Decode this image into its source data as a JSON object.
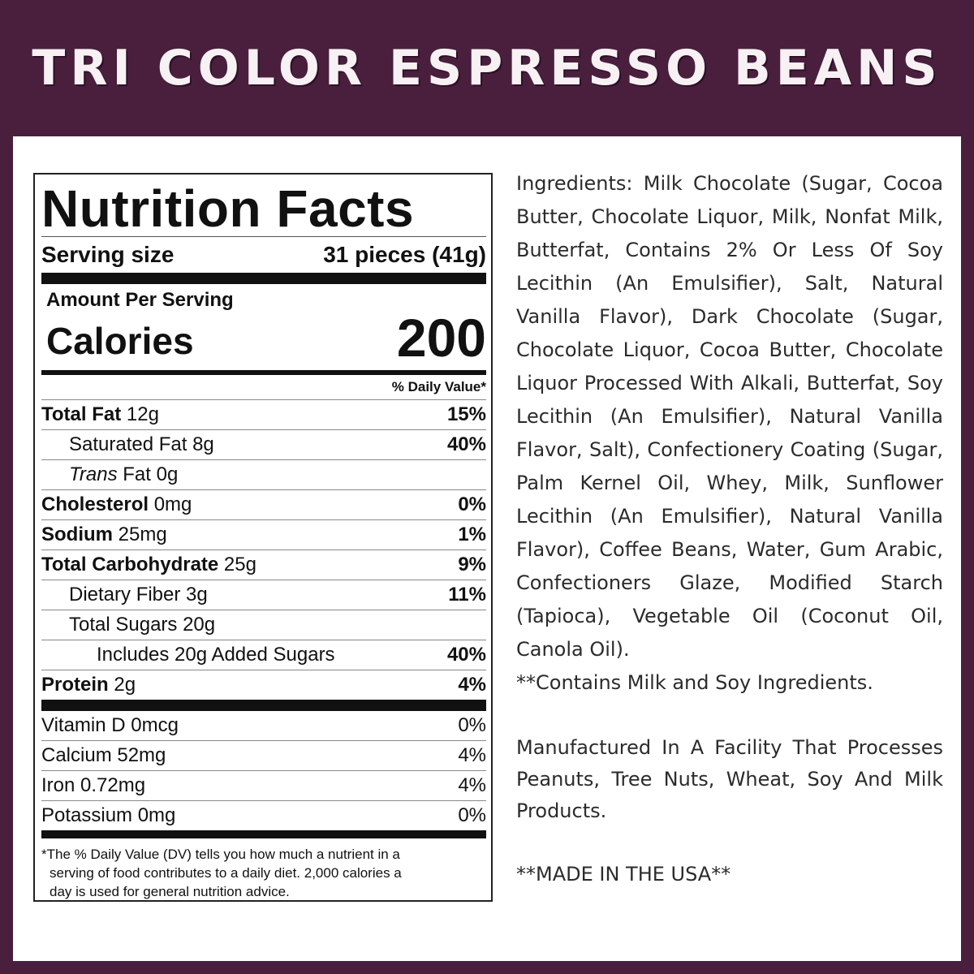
{
  "header": {
    "title": "TRI COLOR ESPRESSO BEANS"
  },
  "colors": {
    "background": "#4a1f3d",
    "panel": "#ffffff"
  },
  "nutrition": {
    "title": "Nutrition Facts",
    "serving_size_label": "Serving size",
    "serving_size_value": "31 pieces (41g)",
    "amount_per_serving": "Amount Per Serving",
    "calories_label": "Calories",
    "calories_value": "200",
    "daily_value_header": "% Daily Value*",
    "rows": [
      {
        "bold": "Total Fat",
        "rest": " 12g",
        "pct": "15%"
      },
      {
        "bold": "",
        "rest": "Saturated Fat 8g",
        "pct": "40%"
      },
      {
        "italic": "Trans",
        "rest": " Fat 0g",
        "pct": ""
      },
      {
        "bold": "Cholesterol",
        "rest": " 0mg",
        "pct": "0%"
      },
      {
        "bold": "Sodium",
        "rest": " 25mg",
        "pct": "1%"
      },
      {
        "bold": "Total Carbohydrate",
        "rest": " 25g",
        "pct": "9%"
      },
      {
        "bold": "",
        "rest": "Dietary Fiber 3g",
        "pct": "11%"
      },
      {
        "bold": "",
        "rest": "Total Sugars 20g",
        "pct": ""
      },
      {
        "bold": "",
        "rest": "Includes 20g Added Sugars",
        "pct": "40%"
      },
      {
        "bold": "Protein",
        "rest": " 2g",
        "pct": "4%"
      }
    ],
    "vitamins": [
      {
        "name": "Vitamin D 0mcg",
        "pct": "0%"
      },
      {
        "name": "Calcium 52mg",
        "pct": "4%"
      },
      {
        "name": "Iron 0.72mg",
        "pct": "4%"
      },
      {
        "name": "Potassium 0mg",
        "pct": "0%"
      }
    ],
    "footnote_line1": "*The % Daily Value (DV) tells you how much a nutrient in a",
    "footnote_line2": "serving of food contributes to a daily diet. 2,000 calories a",
    "footnote_line3": "day is used for general nutrition advice."
  },
  "ingredients": {
    "text": "Ingredients: Milk Chocolate (Sugar, Cocoa Butter, Chocolate Liquor, Milk, Nonfat Milk, Butterfat, Contains 2% Or Less Of Soy Lecithin (An Emulsifier), Salt, Natural Vanilla Flavor), Dark Chocolate (Sugar, Chocolate Liquor, Cocoa Butter, Chocolate Liquor Processed With Alkali, Butterfat, Soy Lecithin (An Emulsifier), Natural Vanilla Flavor, Salt), Confectionery Coating (Sugar, Palm Kernel Oil, Whey, Milk, Sunflower Lecithin (An Emulsifier), Natural Vanilla Flavor), Coffee Beans, Water, Gum Arabic, Confectioners Glaze, Modified Starch (Tapioca), Vegetable Oil (Coconut Oil, Canola Oil).",
    "allergen": "**Contains Milk and Soy Ingredients.",
    "facility": "Manufactured In A Facility That Processes Peanuts, Tree Nuts, Wheat, Soy And Milk Products.",
    "origin": "**MADE IN THE USA**"
  }
}
